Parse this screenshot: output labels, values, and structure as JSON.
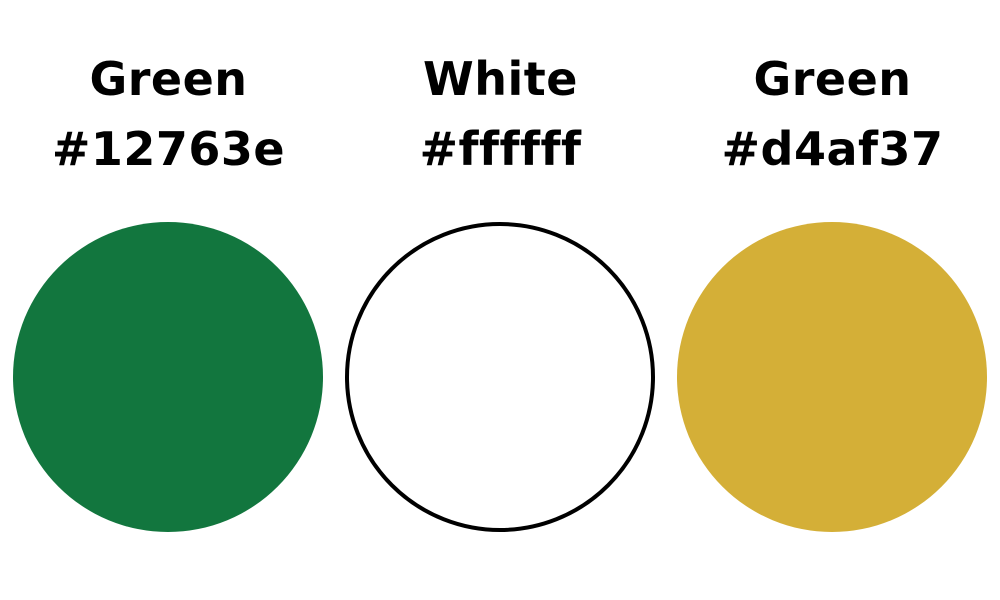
{
  "swatches": [
    {
      "name": "Green",
      "hex": "#12763e",
      "fill": "#12763e",
      "outline": "none"
    },
    {
      "name": "White",
      "hex": "#ffffff",
      "fill": "#ffffff",
      "outline": "#000000"
    },
    {
      "name": "Green",
      "hex": "#d4af37",
      "fill": "#d4af37",
      "outline": "none"
    }
  ]
}
